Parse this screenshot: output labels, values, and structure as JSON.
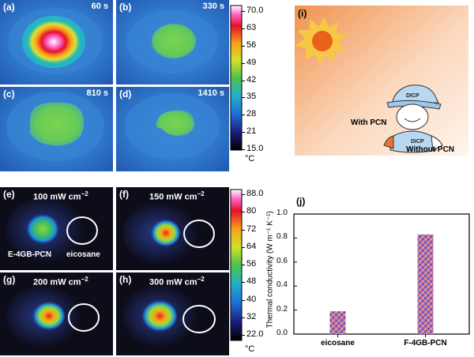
{
  "top_panels": [
    {
      "label": "(a)",
      "time": "60 s"
    },
    {
      "label": "(b)",
      "time": "330 s"
    },
    {
      "label": "(c)",
      "time": "810 s"
    },
    {
      "label": "(d)",
      "time": "1410 s"
    }
  ],
  "top_colorbar": {
    "ticks": [
      "70.0",
      "63",
      "56",
      "49",
      "42",
      "35",
      "28",
      "21",
      "15.0"
    ],
    "unit": "°C"
  },
  "panel_i": {
    "label": "(i)",
    "cap_text": "DICP",
    "shirt_text": "DICP",
    "with_label": "With PCN",
    "without_label": "Without PCN"
  },
  "bottom_panels": [
    {
      "label": "(e)",
      "power": "100 mW cm",
      "exp": "−2"
    },
    {
      "label": "(f)",
      "power": "150 mW cm",
      "exp": "−2"
    },
    {
      "label": "(g)",
      "power": "200 mW cm",
      "exp": "−2"
    },
    {
      "label": "(h)",
      "power": "300 mW cm",
      "exp": "−2"
    }
  ],
  "panel_e_labels": {
    "left": "E-4GB-PCN",
    "right": "eicosane"
  },
  "bottom_colorbar": {
    "ticks": [
      "88.0",
      "80",
      "72",
      "64",
      "56",
      "48",
      "40",
      "32",
      "22.0"
    ],
    "unit": "°C"
  },
  "colors": {
    "panel_dark": "#0d0d1a",
    "top_bg": "#2a6fc9",
    "green_blob": "#6ccf4e",
    "sun": "#e8621c",
    "sun_rays": "#f7c844"
  },
  "chart_data": {
    "type": "bar",
    "panel_label": "(j)",
    "categories": [
      "eicosane",
      "F-4GB-PCN"
    ],
    "values": [
      0.19,
      0.83
    ],
    "ylabel": "Thermal conductivity (W m⁻¹ K⁻¹)",
    "ylim": [
      0.0,
      1.0
    ],
    "yticks": [
      "0.0",
      "0.2",
      "0.4",
      "0.6",
      "0.8",
      "1.0"
    ]
  }
}
